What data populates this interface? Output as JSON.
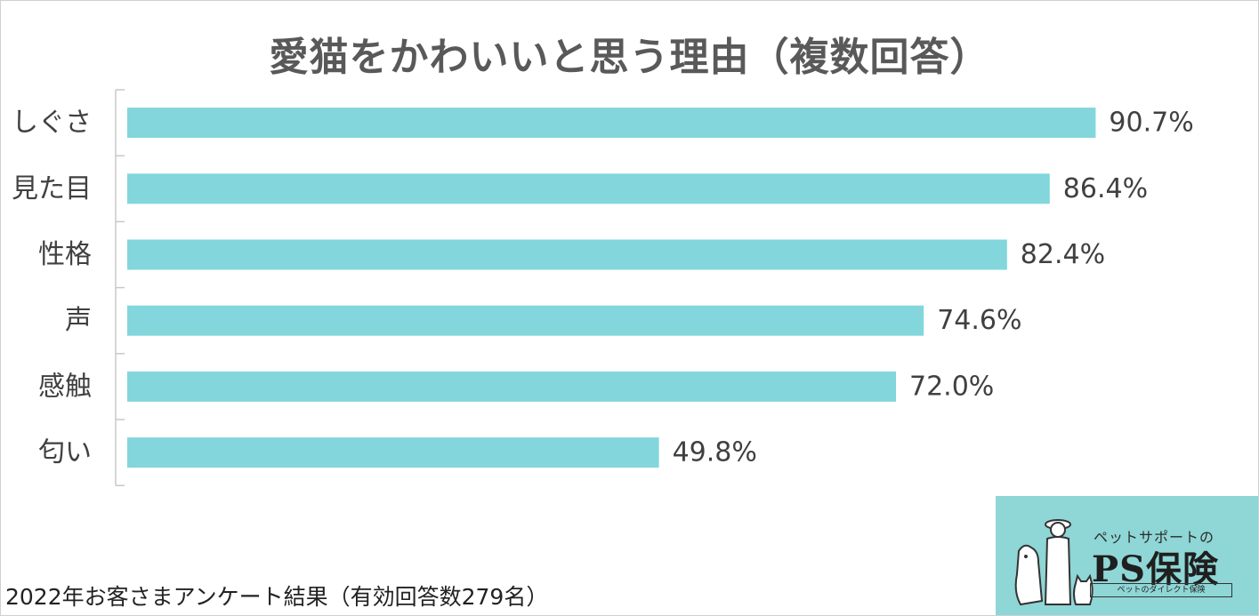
{
  "chart_data": {
    "type": "bar",
    "orientation": "horizontal",
    "title": "愛猫をかわいいと思う理由（複数回答）",
    "categories": [
      "しぐさ",
      "見た目",
      "性格",
      "声",
      "感触",
      "匂い"
    ],
    "values": [
      90.7,
      86.4,
      82.4,
      74.6,
      72.0,
      49.8
    ],
    "value_labels": [
      "90.7%",
      "86.4%",
      "82.4%",
      "74.6%",
      "72.0%",
      "49.8%"
    ],
    "xlim": [
      0,
      100
    ],
    "unit": "%",
    "bar_color": "#82d6dc",
    "grid": false,
    "legend": "none"
  },
  "footnote": "2022年お客さまアンケート結果（有効回答数279名）",
  "logo": {
    "caption": "ペットサポートの",
    "name": "PS保険",
    "tagline": "ペットのダイレクト保険",
    "background": "#8fd6d6",
    "icons": [
      "person-with-hat-icon",
      "dog-icon",
      "cat-icon"
    ]
  }
}
